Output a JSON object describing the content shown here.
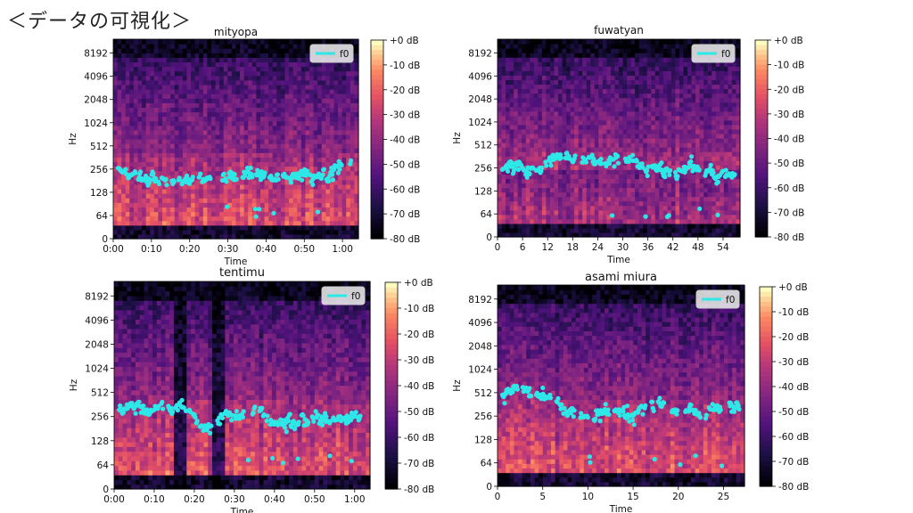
{
  "page": {
    "title": "＜データの可視化＞"
  },
  "chart_data": [
    {
      "type": "heatmap",
      "title": "mityopa",
      "xlabel": "Time",
      "ylabel": "Hz",
      "xticks": [
        "0:00",
        "0:10",
        "0:20",
        "0:30",
        "0:40",
        "0:50",
        "1:00"
      ],
      "yticks": [
        "0",
        "64",
        "128",
        "256",
        "512",
        "1024",
        "2048",
        "4096",
        "8192"
      ],
      "colorbar_ticks": [
        "+0 dB",
        "-10 dB",
        "-20 dB",
        "-30 dB",
        "-40 dB",
        "-50 dB",
        "-60 dB",
        "-70 dB",
        "-80 dB"
      ],
      "legend": {
        "label": "f0",
        "placement": "top-right"
      },
      "f0_color": "#2ee8e8",
      "colormap": "magma",
      "f0_band_hz": [
        180,
        350
      ]
    },
    {
      "type": "heatmap",
      "title": "fuwatyan",
      "xlabel": "Time",
      "ylabel": "Hz",
      "xticks": [
        "0",
        "6",
        "12",
        "18",
        "24",
        "30",
        "36",
        "42",
        "48",
        "54"
      ],
      "yticks": [
        "0",
        "64",
        "128",
        "256",
        "512",
        "1024",
        "2048",
        "4096",
        "8192"
      ],
      "colorbar_ticks": [
        "+0 dB",
        "-10 dB",
        "-20 dB",
        "-30 dB",
        "-40 dB",
        "-50 dB",
        "-60 dB",
        "-70 dB",
        "-80 dB"
      ],
      "legend": {
        "label": "f0",
        "placement": "top-right"
      },
      "f0_color": "#2ee8e8",
      "colormap": "magma",
      "f0_band_hz": [
        160,
        380
      ]
    },
    {
      "type": "heatmap",
      "title": "tentimu",
      "xlabel": "Time",
      "ylabel": "Hz",
      "xticks": [
        "0:00",
        "0:10",
        "0:20",
        "0:30",
        "0:40",
        "0:50",
        "1:00"
      ],
      "yticks": [
        "0",
        "64",
        "128",
        "256",
        "512",
        "1024",
        "2048",
        "4096",
        "8192"
      ],
      "colorbar_ticks": [
        "+0 dB",
        "-10 dB",
        "-20 dB",
        "-30 dB",
        "-40 dB",
        "-50 dB",
        "-60 dB",
        "-70 dB",
        "-80 dB"
      ],
      "legend": {
        "label": "f0",
        "placement": "top-right"
      },
      "f0_color": "#2ee8e8",
      "colormap": "magma",
      "f0_band_hz": [
        150,
        550
      ]
    },
    {
      "type": "heatmap",
      "title": "asami miura",
      "xlabel": "Time",
      "ylabel": "Hz",
      "xticks": [
        "0",
        "5",
        "10",
        "15",
        "20",
        "25"
      ],
      "yticks": [
        "0",
        "64",
        "128",
        "256",
        "512",
        "1024",
        "2048",
        "4096",
        "8192"
      ],
      "colorbar_ticks": [
        "+0 dB",
        "-10 dB",
        "-20 dB",
        "-30 dB",
        "-40 dB",
        "-50 dB",
        "-60 dB",
        "-70 dB",
        "-80 dB"
      ],
      "legend": {
        "label": "f0",
        "placement": "top-right"
      },
      "f0_color": "#2ee8e8",
      "colormap": "magma",
      "f0_band_hz": [
        250,
        550
      ]
    }
  ]
}
